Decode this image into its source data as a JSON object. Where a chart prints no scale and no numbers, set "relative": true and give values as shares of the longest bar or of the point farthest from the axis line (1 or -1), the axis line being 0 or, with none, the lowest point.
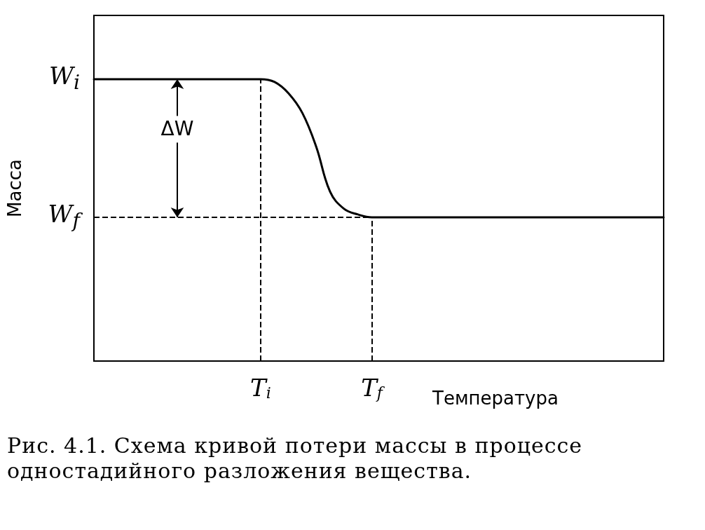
{
  "chart_data": {
    "type": "line",
    "relative": true,
    "xlabel": "Температура",
    "ylabel": "Масса",
    "categories": [
      null,
      null,
      null,
      null,
      null,
      null,
      null,
      null,
      null,
      null,
      null,
      null,
      "T$_{i}$",
      null,
      null,
      null,
      null,
      null,
      null,
      null,
      "T$_{f}$",
      null,
      null,
      null,
      null,
      null,
      null,
      null,
      null,
      null,
      null,
      null,
      null,
      null,
      null,
      null,
      null,
      null,
      null,
      null,
      null,
      null
    ],
    "series": [
      {
        "color": "#000000",
        "values": [
          1,
          1,
          1,
          1,
          1,
          1,
          1,
          1,
          1,
          1,
          1,
          1,
          1,
          0.99,
          0.95,
          0.88,
          0.76,
          0.6,
          0.54,
          0.52,
          0.51,
          0.51,
          0.51,
          0.51,
          0.51,
          0.51,
          0.51,
          0.51,
          0.51,
          0.51,
          0.51,
          0.51,
          0.51,
          0.51,
          0.51,
          0.51,
          0.51,
          0.51,
          0.51,
          0.51,
          0.51,
          0.51
        ]
      }
    ],
    "ref_lines": [
      {
        "axis": "x",
        "value": "T$_{i}$",
        "line_style": "dashed"
      },
      {
        "axis": "x",
        "value": "T$_{f}$",
        "line_style": "dashed"
      },
      {
        "axis": "y",
        "value": 0.51,
        "line_style": "dashed"
      }
    ],
    "annotations": [
      "W$_{i}$",
      "W$_{f}$",
      "ΔW",
      "Рис. 4.1. Схема кривой потери массы в процессе одностадийного разложения вещества."
    ],
    "grid": false,
    "marker": "none",
    "line_style": "solid"
  }
}
